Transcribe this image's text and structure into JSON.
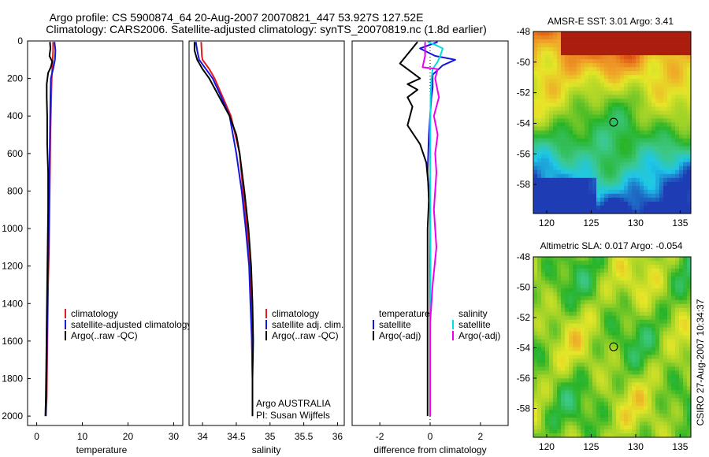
{
  "header": {
    "title_line1": "Argo profile: CS 5900874_64 20-Aug-2007 20070821_447 53.927S 127.52E",
    "title_line2": "Climatology: CARS2006. Satellite-adjusted climatology: synTS_20070819.nc (1.8d earlier)"
  },
  "side_label": "CSIRO 27-Aug-2007 10:34:37",
  "colors": {
    "climatology": "#e41a1c",
    "satellite": "#1515e0",
    "argo": "#000000",
    "sat_salinity": "#00e0e0",
    "argo_salinity_adj": "#ee00ee"
  },
  "chart_data": [
    {
      "type": "line",
      "xlabel": "temperature",
      "xlim": [
        -2,
        32
      ],
      "ylim": [
        2050,
        0
      ],
      "y_ticks": [
        0,
        200,
        400,
        600,
        800,
        1000,
        1200,
        1400,
        1600,
        1800,
        2000
      ],
      "x_ticks": [
        0,
        10,
        20,
        30
      ],
      "legend": [
        "climatology",
        "satellite-adjusted climatology",
        "Argo(..raw -QC)"
      ],
      "series": [
        {
          "name": "climatology",
          "color": "climatology",
          "x": [
            3.6,
            3.6,
            3.5,
            3.4,
            3.3,
            3.2,
            3.0,
            2.9,
            2.8,
            2.7,
            2.5,
            2.4,
            2.3,
            2.2,
            2.0
          ],
          "y": [
            5,
            50,
            100,
            150,
            200,
            300,
            500,
            700,
            900,
            1100,
            1300,
            1500,
            1700,
            1900,
            2000
          ]
        },
        {
          "name": "satellite-adjusted climatology",
          "color": "satellite",
          "x": [
            3.9,
            4.1,
            4.0,
            3.6,
            3.1,
            3.0,
            2.9,
            2.8,
            2.7,
            2.6,
            2.4,
            2.3,
            2.2,
            2.1,
            2.0
          ],
          "y": [
            5,
            50,
            100,
            150,
            200,
            300,
            500,
            700,
            900,
            1100,
            1300,
            1500,
            1700,
            1900,
            2000
          ]
        },
        {
          "name": "Argo(..raw -QC)",
          "color": "argo",
          "x": [
            2.9,
            3.0,
            2.8,
            3.4,
            3.1,
            2.5,
            2.2,
            2.2,
            2.3,
            2.3,
            2.5,
            2.5,
            2.4,
            2.3,
            2.2,
            2.1,
            2.0,
            1.9
          ],
          "y": [
            5,
            40,
            80,
            110,
            140,
            170,
            230,
            300,
            400,
            550,
            700,
            900,
            1100,
            1300,
            1500,
            1700,
            1900,
            2000
          ]
        }
      ]
    },
    {
      "type": "line",
      "xlabel": "salinity",
      "xlim": [
        33.8,
        36.1
      ],
      "ylim": [
        2050,
        0
      ],
      "y_ticks": [
        0,
        200,
        400,
        600,
        800,
        1000,
        1200,
        1400,
        1600,
        1800,
        2000
      ],
      "x_ticks": [
        34,
        34.5,
        35,
        35.5,
        36
      ],
      "legend": [
        "climatology",
        "satellite adj. clim.",
        "Argo(..raw -QC)"
      ],
      "annotation_lines": [
        "Argo AUSTRALIA",
        "PI: Susan Wijffels"
      ],
      "series": [
        {
          "name": "climatology",
          "color": "climatology",
          "x": [
            33.98,
            33.99,
            34.0,
            34.1,
            34.18,
            34.3,
            34.42,
            34.55,
            34.6,
            34.66,
            34.7,
            34.72,
            34.73,
            34.74,
            34.74
          ],
          "y": [
            5,
            80,
            100,
            150,
            200,
            300,
            400,
            600,
            800,
            1000,
            1200,
            1400,
            1600,
            1800,
            2000
          ]
        },
        {
          "name": "satellite adj. clim.",
          "color": "satellite",
          "x": [
            33.9,
            33.92,
            33.95,
            34.05,
            34.15,
            34.28,
            34.4,
            34.5,
            34.58,
            34.64,
            34.69,
            34.71,
            34.73,
            34.74,
            34.74
          ],
          "y": [
            5,
            50,
            100,
            150,
            200,
            300,
            400,
            600,
            800,
            1000,
            1200,
            1400,
            1600,
            1800,
            2000
          ]
        },
        {
          "name": "Argo(..raw -QC)",
          "color": "argo",
          "x": [
            33.88,
            33.88,
            33.92,
            34.0,
            34.1,
            34.25,
            34.4,
            34.5,
            34.55,
            34.62,
            34.68,
            34.72,
            34.74,
            34.75,
            34.74,
            34.74
          ],
          "y": [
            5,
            50,
            100,
            150,
            200,
            300,
            400,
            500,
            600,
            800,
            1000,
            1200,
            1400,
            1600,
            1800,
            2000
          ]
        }
      ]
    },
    {
      "type": "line",
      "xlabel": "difference from climatology",
      "xlim": [
        -3.1,
        3.1
      ],
      "ylim": [
        2050,
        0
      ],
      "y_ticks": [
        0,
        200,
        400,
        600,
        800,
        1000,
        1200,
        1400,
        1600,
        1800,
        2000
      ],
      "x_ticks": [
        -2,
        0,
        2
      ],
      "legend_left_header": "temperature",
      "legend_right_header": "salinity",
      "legend_left": [
        "satellite",
        "Argo(-adj)"
      ],
      "legend_right": [
        "satellite",
        "Argo(-adj)"
      ],
      "series": [
        {
          "name": "temperature satellite",
          "color": "satellite",
          "x": [
            0.3,
            -0.4,
            0.2,
            1.0,
            0.5,
            0.1,
            0.1,
            0.05,
            0.0,
            -0.05,
            -0.1,
            -0.05,
            0.0,
            0.0,
            0.0,
            0.0,
            0.0,
            0.0
          ],
          "y": [
            5,
            40,
            80,
            100,
            130,
            180,
            250,
            300,
            400,
            500,
            700,
            800,
            900,
            1100,
            1300,
            1500,
            1800,
            2000
          ]
        },
        {
          "name": "temperature Argo(-adj)",
          "color": "argo",
          "x": [
            -0.5,
            -1.2,
            -0.8,
            -0.4,
            -0.9,
            -0.5,
            -0.9,
            -0.7,
            -0.9,
            -0.4,
            -0.15,
            -0.08,
            -0.05,
            -0.1,
            -0.1,
            -0.1,
            -0.1,
            -0.1
          ],
          "y": [
            5,
            120,
            160,
            200,
            230,
            260,
            300,
            350,
            450,
            550,
            650,
            750,
            850,
            1000,
            1300,
            1600,
            1900,
            2000
          ]
        },
        {
          "name": "salinity satellite",
          "color": "sat_salinity",
          "x": [
            -0.1,
            0.2,
            0.5,
            0.4,
            0.3,
            0.1,
            0.05,
            0.02,
            0.0,
            0.0,
            0.02,
            0.0,
            0.0
          ],
          "y": [
            5,
            20,
            40,
            80,
            110,
            150,
            200,
            300,
            500,
            800,
            1200,
            1600,
            2000
          ]
        },
        {
          "name": "salinity Argo(-adj)",
          "color": "argo_salinity_adj",
          "x": [
            -0.2,
            -0.2,
            -0.3,
            0.3,
            0.2,
            0.35,
            0.15,
            0.3,
            0.2,
            0.25,
            0.15,
            0.25,
            0.1,
            0.0,
            0.0,
            0.0
          ],
          "y": [
            5,
            80,
            140,
            150,
            200,
            300,
            400,
            500,
            600,
            700,
            900,
            1100,
            1300,
            1500,
            1800,
            2000
          ]
        }
      ]
    },
    {
      "type": "heatmap",
      "title": "AMSR-E SST: 3.01 Argo: 3.41",
      "xlim": [
        118.5,
        136.2
      ],
      "ylim": [
        -59.9,
        -48
      ],
      "x_ticks": [
        120,
        125,
        130,
        135
      ],
      "y_ticks": [
        -48,
        -50,
        -52,
        -54,
        -56,
        -58
      ],
      "marker": {
        "x": 127.52,
        "y": -53.927
      },
      "description_palette": [
        "#1e3cb4",
        "#1ec8e8",
        "#3cc888",
        "#28b428",
        "#a0d228",
        "#e6e628",
        "#f0a028",
        "#e05a14",
        "#9a0a0a"
      ]
    },
    {
      "type": "heatmap",
      "title": "Altimetric SLA: 0.017 Argo: -0.054",
      "xlim": [
        118.5,
        136.2
      ],
      "ylim": [
        -59.9,
        -48
      ],
      "x_ticks": [
        120,
        125,
        130,
        135
      ],
      "y_ticks": [
        -48,
        -50,
        -52,
        -54,
        -56,
        -58
      ],
      "marker": {
        "x": 127.52,
        "y": -53.927
      }
    }
  ]
}
